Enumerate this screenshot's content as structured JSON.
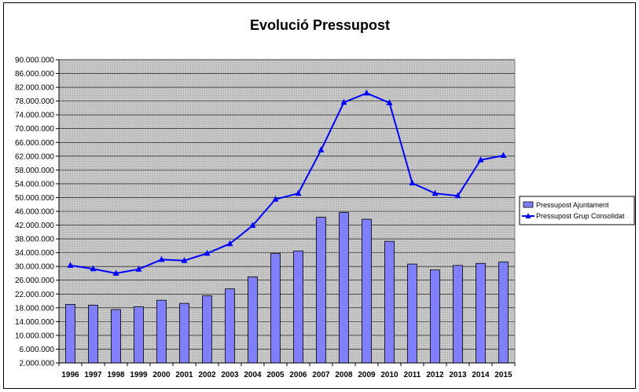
{
  "chart_data": {
    "type": "bar",
    "title": "Evolució Pressupost",
    "xlabel": "",
    "ylabel": "",
    "ylim": [
      2000000,
      90000000
    ],
    "yticks": [
      "2.000.000",
      "6.000.000",
      "10.000.000",
      "14.000.000",
      "18.000.000",
      "22.000.000",
      "26.000.000",
      "30.000.000",
      "34.000.000",
      "38.000.000",
      "42.000.000",
      "46.000.000",
      "50.000.000",
      "54.000.000",
      "58.000.000",
      "62.000.000",
      "66.000.000",
      "70.000.000",
      "74.000.000",
      "78.000.000",
      "82.000.000",
      "86.000.000",
      "90.000.000"
    ],
    "categories": [
      "1996",
      "1997",
      "1998",
      "1999",
      "2000",
      "2001",
      "2002",
      "2003",
      "2004",
      "2005",
      "2006",
      "2007",
      "2008",
      "2009",
      "2010",
      "2011",
      "2012",
      "2013",
      "2014",
      "2015"
    ],
    "series": [
      {
        "name": "Pressupost Ajuntament",
        "type": "bar",
        "color": "#8080ff",
        "values": [
          19000000,
          18800000,
          17500000,
          18300000,
          20200000,
          19300000,
          21500000,
          23500000,
          27000000,
          33800000,
          34500000,
          44300000,
          45700000,
          43700000,
          37300000,
          30700000,
          29000000,
          30300000,
          30900000,
          31300000
        ]
      },
      {
        "name": "Pressupost Grup Consolidat",
        "type": "line",
        "color": "#0000ff",
        "values": [
          30300000,
          29300000,
          28000000,
          29200000,
          32000000,
          31700000,
          33800000,
          36600000,
          41900000,
          49500000,
          51200000,
          63800000,
          77600000,
          80300000,
          77500000,
          54200000,
          51200000,
          50500000,
          60900000,
          62200000
        ]
      }
    ],
    "grid": true,
    "legend": "right"
  }
}
